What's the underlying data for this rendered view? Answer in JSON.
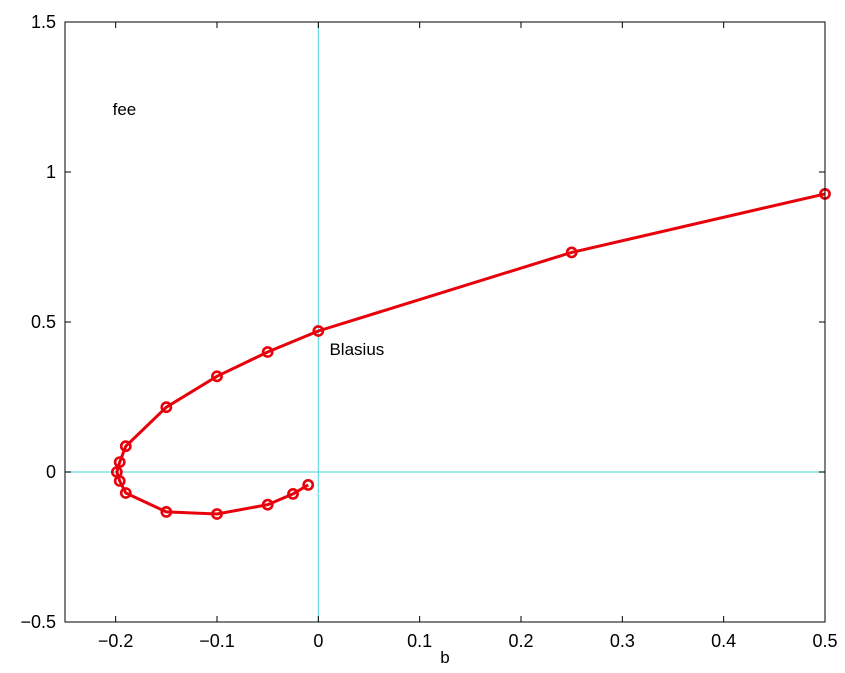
{
  "chart_data": {
    "type": "line",
    "title": "",
    "xlabel": "b",
    "ylabel": "",
    "xlim": [
      -0.25,
      0.5
    ],
    "ylim": [
      -0.5,
      1.5
    ],
    "grid": false,
    "x_ticks": [
      -0.2,
      -0.1,
      0,
      0.1,
      0.2,
      0.3,
      0.4,
      0.5
    ],
    "x_tick_labels": [
      "−0.2",
      "−0.1",
      "0",
      "0.1",
      "0.2",
      "0.3",
      "0.4",
      "0.5"
    ],
    "y_ticks": [
      -0.5,
      0,
      0.5,
      1,
      1.5
    ],
    "y_tick_labels": [
      "−0.5",
      "0",
      "0.5",
      "1",
      "1.5"
    ],
    "reference_lines": [
      {
        "orientation": "vertical",
        "value": 0,
        "color": "#66dde0"
      },
      {
        "orientation": "horizontal",
        "value": 0,
        "color": "#66dde0"
      }
    ],
    "series": [
      {
        "color": "#e8000b",
        "marker": "circle",
        "points": [
          {
            "x": 0.5,
            "y": 0.927
          },
          {
            "x": 0.25,
            "y": 0.732
          },
          {
            "x": 0.0,
            "y": 0.47
          },
          {
            "x": -0.05,
            "y": 0.4
          },
          {
            "x": -0.1,
            "y": 0.319
          },
          {
            "x": -0.15,
            "y": 0.216
          },
          {
            "x": -0.19,
            "y": 0.086
          },
          {
            "x": -0.196,
            "y": 0.033
          },
          {
            "x": -0.1988,
            "y": 0.0
          },
          {
            "x": -0.196,
            "y": -0.03
          },
          {
            "x": -0.19,
            "y": -0.07
          },
          {
            "x": -0.15,
            "y": -0.133
          },
          {
            "x": -0.1,
            "y": -0.14
          },
          {
            "x": -0.05,
            "y": -0.109
          },
          {
            "x": -0.025,
            "y": -0.073
          },
          {
            "x": -0.01,
            "y": -0.043
          }
        ]
      }
    ],
    "annotations": [
      {
        "text": "fee",
        "x": -0.203,
        "y": 1.19
      },
      {
        "text": "Blasius",
        "x": 0.011,
        "y": 0.39
      }
    ]
  }
}
